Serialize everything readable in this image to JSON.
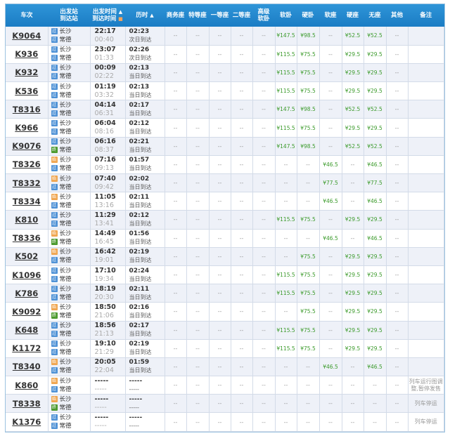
{
  "headers": {
    "train": "车次",
    "stations": [
      "出发站",
      "到达站"
    ],
    "times": [
      "出发时间",
      "到达时间"
    ],
    "duration": "历时",
    "seats": [
      "商务座",
      "特等座",
      "一等座",
      "二等座",
      "高级软卧",
      "软卧",
      "硬卧",
      "软座",
      "硬座",
      "无座",
      "其他"
    ],
    "note": "备注",
    "sort_arrow": "▲"
  },
  "station_icon_colors": {
    "pass": "#4f92d6",
    "start": "#f0a650",
    "end": "#4c9a2f"
  },
  "rows": [
    {
      "train": "K9064",
      "from": "长沙",
      "to": "常德",
      "fi": "pass",
      "ti": "pass",
      "dep": "22:17",
      "arr": "00:40",
      "dur": "02:23",
      "day": "次日到达",
      "seats": [
        "--",
        "--",
        "--",
        "--",
        "--",
        "¥147.5",
        "¥98.5",
        "--",
        "¥52.5",
        "¥52.5",
        "--"
      ],
      "note": ""
    },
    {
      "train": "K936",
      "from": "长沙",
      "to": "常德",
      "fi": "pass",
      "ti": "pass",
      "dep": "23:07",
      "arr": "01:33",
      "dur": "02:26",
      "day": "次日到达",
      "seats": [
        "--",
        "--",
        "--",
        "--",
        "--",
        "¥115.5",
        "¥75.5",
        "--",
        "¥29.5",
        "¥29.5",
        "--"
      ],
      "note": ""
    },
    {
      "train": "K932",
      "from": "长沙",
      "to": "常德",
      "fi": "pass",
      "ti": "pass",
      "dep": "00:09",
      "arr": "02:22",
      "dur": "02:13",
      "day": "当日到达",
      "seats": [
        "--",
        "--",
        "--",
        "--",
        "--",
        "¥115.5",
        "¥75.5",
        "--",
        "¥29.5",
        "¥29.5",
        "--"
      ],
      "note": ""
    },
    {
      "train": "K536",
      "from": "长沙",
      "to": "常德",
      "fi": "pass",
      "ti": "pass",
      "dep": "01:19",
      "arr": "03:32",
      "dur": "02:13",
      "day": "当日到达",
      "seats": [
        "--",
        "--",
        "--",
        "--",
        "--",
        "¥115.5",
        "¥75.5",
        "--",
        "¥29.5",
        "¥29.5",
        "--"
      ],
      "note": ""
    },
    {
      "train": "T8316",
      "from": "长沙",
      "to": "常德",
      "fi": "pass",
      "ti": "pass",
      "dep": "04:14",
      "arr": "06:31",
      "dur": "02:17",
      "day": "当日到达",
      "seats": [
        "--",
        "--",
        "--",
        "--",
        "--",
        "¥147.5",
        "¥98.5",
        "--",
        "¥52.5",
        "¥52.5",
        "--"
      ],
      "note": ""
    },
    {
      "train": "K966",
      "from": "长沙",
      "to": "常德",
      "fi": "pass",
      "ti": "pass",
      "dep": "06:04",
      "arr": "08:16",
      "dur": "02:12",
      "day": "当日到达",
      "seats": [
        "--",
        "--",
        "--",
        "--",
        "--",
        "¥115.5",
        "¥75.5",
        "--",
        "¥29.5",
        "¥29.5",
        "--"
      ],
      "note": ""
    },
    {
      "train": "K9076",
      "from": "长沙",
      "to": "常德",
      "fi": "pass",
      "ti": "end",
      "dep": "06:16",
      "arr": "08:37",
      "dur": "02:21",
      "day": "当日到达",
      "seats": [
        "--",
        "--",
        "--",
        "--",
        "--",
        "¥147.5",
        "¥98.5",
        "--",
        "¥52.5",
        "¥52.5",
        "--"
      ],
      "note": ""
    },
    {
      "train": "T8326",
      "from": "长沙",
      "to": "常德",
      "fi": "start",
      "ti": "pass",
      "dep": "07:16",
      "arr": "09:13",
      "dur": "01:57",
      "day": "当日到达",
      "seats": [
        "--",
        "--",
        "--",
        "--",
        "--",
        "--",
        "--",
        "¥46.5",
        "--",
        "¥46.5",
        "--"
      ],
      "note": ""
    },
    {
      "train": "T8332",
      "from": "长沙",
      "to": "常德",
      "fi": "start",
      "ti": "pass",
      "dep": "07:40",
      "arr": "09:42",
      "dur": "02:02",
      "day": "当日到达",
      "seats": [
        "--",
        "--",
        "--",
        "--",
        "--",
        "--",
        "--",
        "¥77.5",
        "--",
        "¥77.5",
        "--"
      ],
      "note": ""
    },
    {
      "train": "T8334",
      "from": "长沙",
      "to": "常德",
      "fi": "start",
      "ti": "pass",
      "dep": "11:05",
      "arr": "13:16",
      "dur": "02:11",
      "day": "当日到达",
      "seats": [
        "--",
        "--",
        "--",
        "--",
        "--",
        "--",
        "--",
        "¥46.5",
        "--",
        "¥46.5",
        "--"
      ],
      "note": ""
    },
    {
      "train": "K810",
      "from": "长沙",
      "to": "常德",
      "fi": "pass",
      "ti": "pass",
      "dep": "11:29",
      "arr": "13:41",
      "dur": "02:12",
      "day": "当日到达",
      "seats": [
        "--",
        "--",
        "--",
        "--",
        "--",
        "¥115.5",
        "¥75.5",
        "--",
        "¥29.5",
        "¥29.5",
        "--"
      ],
      "note": ""
    },
    {
      "train": "T8336",
      "from": "长沙",
      "to": "常德",
      "fi": "start",
      "ti": "end",
      "dep": "14:49",
      "arr": "16:45",
      "dur": "01:56",
      "day": "当日到达",
      "seats": [
        "--",
        "--",
        "--",
        "--",
        "--",
        "--",
        "--",
        "¥46.5",
        "--",
        "¥46.5",
        "--"
      ],
      "note": ""
    },
    {
      "train": "K502",
      "from": "长沙",
      "to": "常德",
      "fi": "start",
      "ti": "pass",
      "dep": "16:42",
      "arr": "19:01",
      "dur": "02:19",
      "day": "当日到达",
      "seats": [
        "--",
        "--",
        "--",
        "--",
        "--",
        "--",
        "¥75.5",
        "--",
        "¥29.5",
        "¥29.5",
        "--"
      ],
      "note": ""
    },
    {
      "train": "K1096",
      "from": "长沙",
      "to": "常德",
      "fi": "pass",
      "ti": "pass",
      "dep": "17:10",
      "arr": "19:34",
      "dur": "02:24",
      "day": "当日到达",
      "seats": [
        "--",
        "--",
        "--",
        "--",
        "--",
        "¥115.5",
        "¥75.5",
        "--",
        "¥29.5",
        "¥29.5",
        "--"
      ],
      "note": ""
    },
    {
      "train": "K786",
      "from": "长沙",
      "to": "常德",
      "fi": "pass",
      "ti": "pass",
      "dep": "18:19",
      "arr": "20:30",
      "dur": "02:11",
      "day": "当日到达",
      "seats": [
        "--",
        "--",
        "--",
        "--",
        "--",
        "¥115.5",
        "¥75.5",
        "--",
        "¥29.5",
        "¥29.5",
        "--"
      ],
      "note": ""
    },
    {
      "train": "K9092",
      "from": "长沙",
      "to": "常德",
      "fi": "start",
      "ti": "end",
      "dep": "18:50",
      "arr": "21:06",
      "dur": "02:16",
      "day": "当日到达",
      "seats": [
        "--",
        "--",
        "--",
        "--",
        "--",
        "--",
        "¥75.5",
        "--",
        "¥29.5",
        "¥29.5",
        "--"
      ],
      "note": ""
    },
    {
      "train": "K648",
      "from": "长沙",
      "to": "常德",
      "fi": "pass",
      "ti": "pass",
      "dep": "18:56",
      "arr": "21:13",
      "dur": "02:17",
      "day": "当日到达",
      "seats": [
        "--",
        "--",
        "--",
        "--",
        "--",
        "¥115.5",
        "¥75.5",
        "--",
        "¥29.5",
        "¥29.5",
        "--"
      ],
      "note": ""
    },
    {
      "train": "K1172",
      "from": "长沙",
      "to": "常德",
      "fi": "pass",
      "ti": "pass",
      "dep": "19:10",
      "arr": "21:29",
      "dur": "02:19",
      "day": "当日到达",
      "seats": [
        "--",
        "--",
        "--",
        "--",
        "--",
        "¥115.5",
        "¥75.5",
        "--",
        "¥29.5",
        "¥29.5",
        "--"
      ],
      "note": ""
    },
    {
      "train": "T8340",
      "from": "长沙",
      "to": "常德",
      "fi": "start",
      "ti": "pass",
      "dep": "20:05",
      "arr": "22:04",
      "dur": "01:59",
      "day": "当日到达",
      "seats": [
        "--",
        "--",
        "--",
        "--",
        "--",
        "--",
        "--",
        "¥46.5",
        "--",
        "¥46.5",
        "--"
      ],
      "note": ""
    },
    {
      "train": "K860",
      "from": "长沙",
      "to": "常德",
      "fi": "start",
      "ti": "pass",
      "dep": "-----",
      "arr": "-----",
      "dur": "-----",
      "day": "-----",
      "seats": [
        "--",
        "--",
        "--",
        "--",
        "--",
        "--",
        "--",
        "--",
        "--",
        "--",
        "--"
      ],
      "note": "列车运行图调整,暂停发售"
    },
    {
      "train": "T8338",
      "from": "长沙",
      "to": "常德",
      "fi": "start",
      "ti": "end",
      "dep": "-----",
      "arr": "-----",
      "dur": "-----",
      "day": "-----",
      "seats": [
        "--",
        "--",
        "--",
        "--",
        "--",
        "--",
        "--",
        "--",
        "--",
        "--",
        "--"
      ],
      "note": "列车停运"
    },
    {
      "train": "K1376",
      "from": "长沙",
      "to": "常德",
      "fi": "pass",
      "ti": "pass",
      "dep": "-----",
      "arr": "-----",
      "dur": "-----",
      "day": "-----",
      "seats": [
        "--",
        "--",
        "--",
        "--",
        "--",
        "--",
        "--",
        "--",
        "--",
        "--",
        "--"
      ],
      "note": "列车停运"
    }
  ],
  "icon_glyphs": {
    "pass": "过",
    "start": "始",
    "end": "终"
  }
}
